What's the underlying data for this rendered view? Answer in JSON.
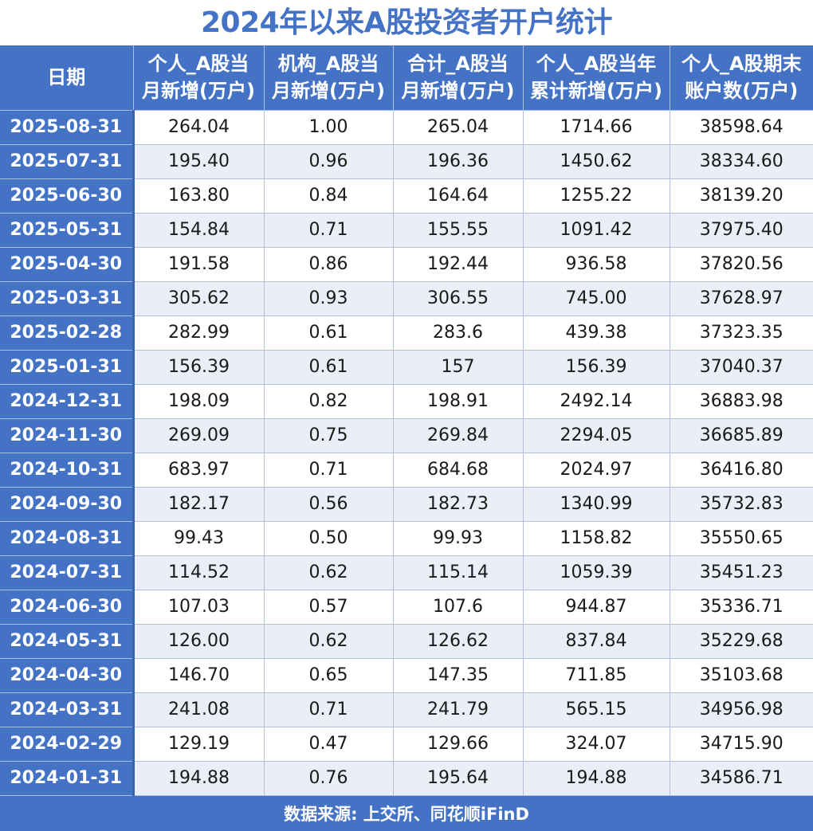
{
  "title": "2024年以来A股投资者开户统计",
  "accent_color": "#4472c4",
  "headers": [
    {
      "line1": "日期",
      "line2": ""
    },
    {
      "line1": "个人_A股当",
      "line2": "月新增(万户)"
    },
    {
      "line1": "机构_A股当",
      "line2": "月新增(万户)"
    },
    {
      "line1": "合计_A股当",
      "line2": "月新增(万户)"
    },
    {
      "line1": "个人_A股当年",
      "line2": "累计新增(万户)"
    },
    {
      "line1": "个人_A股期末",
      "line2": "账户数(万户)"
    }
  ],
  "rows": [
    [
      "2025-08-31",
      "264.04",
      "1.00",
      "265.04",
      "1714.66",
      "38598.64"
    ],
    [
      "2025-07-31",
      "195.40",
      "0.96",
      "196.36",
      "1450.62",
      "38334.60"
    ],
    [
      "2025-06-30",
      "163.80",
      "0.84",
      "164.64",
      "1255.22",
      "38139.20"
    ],
    [
      "2025-05-31",
      "154.84",
      "0.71",
      "155.55",
      "1091.42",
      "37975.40"
    ],
    [
      "2025-04-30",
      "191.58",
      "0.86",
      "192.44",
      "936.58",
      "37820.56"
    ],
    [
      "2025-03-31",
      "305.62",
      "0.93",
      "306.55",
      "745.00",
      "37628.97"
    ],
    [
      "2025-02-28",
      "282.99",
      "0.61",
      "283.6",
      "439.38",
      "37323.35"
    ],
    [
      "2025-01-31",
      "156.39",
      "0.61",
      "157",
      "156.39",
      "37040.37"
    ],
    [
      "2024-12-31",
      "198.09",
      "0.82",
      "198.91",
      "2492.14",
      "36883.98"
    ],
    [
      "2024-11-30",
      "269.09",
      "0.75",
      "269.84",
      "2294.05",
      "36685.89"
    ],
    [
      "2024-10-31",
      "683.97",
      "0.71",
      "684.68",
      "2024.97",
      "36416.80"
    ],
    [
      "2024-09-30",
      "182.17",
      "0.56",
      "182.73",
      "1340.99",
      "35732.83"
    ],
    [
      "2024-08-31",
      "99.43",
      "0.50",
      "99.93",
      "1158.82",
      "35550.65"
    ],
    [
      "2024-07-31",
      "114.52",
      "0.62",
      "115.14",
      "1059.39",
      "35451.23"
    ],
    [
      "2024-06-30",
      "107.03",
      "0.57",
      "107.6",
      "944.87",
      "35336.71"
    ],
    [
      "2024-05-31",
      "126.00",
      "0.62",
      "126.62",
      "837.84",
      "35229.68"
    ],
    [
      "2024-04-30",
      "146.70",
      "0.65",
      "147.35",
      "711.85",
      "35103.68"
    ],
    [
      "2024-03-31",
      "241.08",
      "0.71",
      "241.79",
      "565.15",
      "34956.98"
    ],
    [
      "2024-02-29",
      "129.19",
      "0.47",
      "129.66",
      "324.07",
      "34715.90"
    ],
    [
      "2024-01-31",
      "194.88",
      "0.76",
      "195.64",
      "194.88",
      "34586.71"
    ]
  ],
  "footer": "数据来源: 上交所、同花顺iFinD"
}
